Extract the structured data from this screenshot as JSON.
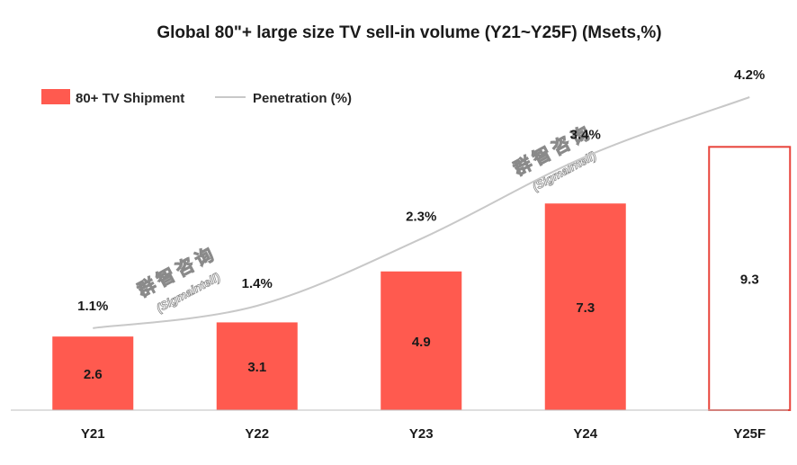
{
  "chart_data": {
    "type": "bar+line",
    "title": "Global 80\"+ large size TV sell-in volume (Y21~Y25F) (Msets,%)",
    "categories": [
      "Y21",
      "Y22",
      "Y23",
      "Y24",
      "Y25F"
    ],
    "series": [
      {
        "name": "80+ TV Shipment",
        "type": "bar",
        "values": [
          2.6,
          3.1,
          4.9,
          7.3,
          9.3
        ],
        "value_labels": [
          "2.6",
          "3.1",
          "4.9",
          "7.3",
          "9.3"
        ],
        "forecast": [
          false,
          false,
          false,
          false,
          true
        ]
      },
      {
        "name": "Penetration (%)",
        "type": "line",
        "values": [
          1.1,
          1.4,
          2.3,
          3.4,
          4.2
        ],
        "value_labels": [
          "1.1%",
          "1.4%",
          "2.3%",
          "3.4%",
          "4.2%"
        ]
      }
    ],
    "bar_ylim": [
      0,
      12.9
    ],
    "line_ylim": [
      0,
      4.9
    ],
    "legend_position": "top-left",
    "grid": false
  },
  "watermark": {
    "chinese": "群智咨询",
    "english": "(Sigmaintell)"
  },
  "colors": {
    "bar": "#ff5a4f",
    "forecast_border": "#e8433a",
    "line": "#c8c8c8",
    "axis": "#bfbfbf"
  }
}
